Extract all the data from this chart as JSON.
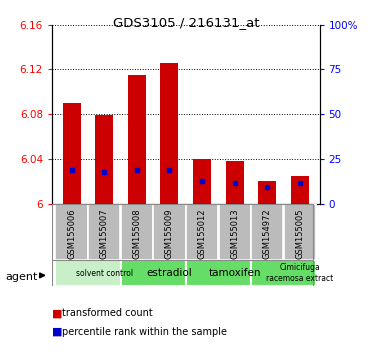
{
  "title": "GDS3105 / 216131_at",
  "samples": [
    "GSM155006",
    "GSM155007",
    "GSM155008",
    "GSM155009",
    "GSM155012",
    "GSM155013",
    "GSM154972",
    "GSM155005"
  ],
  "red_values": [
    6.09,
    6.079,
    6.115,
    6.126,
    6.04,
    6.038,
    6.02,
    6.025
  ],
  "blue_values": [
    6.03,
    6.028,
    6.03,
    6.03,
    6.02,
    6.018,
    6.015,
    6.018
  ],
  "ymin": 6.0,
  "ymax": 6.16,
  "yticks": [
    6.0,
    6.04,
    6.08,
    6.12,
    6.16
  ],
  "ytick_labels": [
    "6",
    "6.04",
    "6.08",
    "6.12",
    "6.16"
  ],
  "right_yticks": [
    0,
    25,
    50,
    75,
    100
  ],
  "right_ytick_labels": [
    "0",
    "25",
    "50",
    "75",
    "100%"
  ],
  "groups": [
    {
      "label": "solvent control",
      "start": 0,
      "end": 2,
      "color": "#c8efc8",
      "fontsize": 6
    },
    {
      "label": "estradiol",
      "start": 2,
      "end": 4,
      "color": "#66dd66",
      "fontsize": 8
    },
    {
      "label": "tamoxifen",
      "start": 4,
      "end": 6,
      "color": "#66dd66",
      "fontsize": 8
    },
    {
      "label": "Cimicifuga\nracemosa extract",
      "start": 6,
      "end": 8,
      "color": "#66dd66",
      "fontsize": 6
    }
  ],
  "bar_width": 0.55,
  "bar_color": "#cc0000",
  "blue_color": "#0000cc",
  "bg_color": "#bbbbbb",
  "legend_red": "transformed count",
  "legend_blue": "percentile rank within the sample"
}
